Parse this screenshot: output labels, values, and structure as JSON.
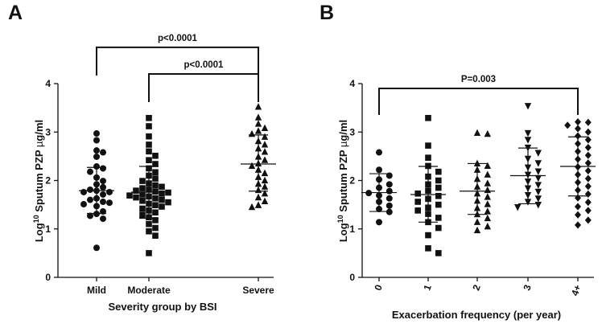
{
  "chart_data": [
    {
      "panel": "A",
      "type": "scatter",
      "xlabel": "Severity group by BSI",
      "ylabel_parts": [
        "Log",
        "10",
        " Sputum PZP ",
        "µ",
        "g/ml"
      ],
      "ylim": [
        0,
        4
      ],
      "yticks": [
        "0",
        "1",
        "2",
        "3",
        "4"
      ],
      "categories": [
        "Mild",
        "Moderate",
        "Severe"
      ],
      "markers": [
        "circle",
        "square",
        "triangle-up"
      ],
      "groups": [
        {
          "name": "Mild",
          "mean": 1.79,
          "sd_upper": 2.27,
          "sd_lower": 1.32,
          "values": [
            2.97,
            2.83,
            2.62,
            2.58,
            2.49,
            2.29,
            2.25,
            2.18,
            2.06,
            1.99,
            1.92,
            1.86,
            1.81,
            1.79,
            1.76,
            1.76,
            1.71,
            1.63,
            1.6,
            1.56,
            1.54,
            1.51,
            1.47,
            1.36,
            1.31,
            1.27,
            1.21,
            0.61
          ]
        },
        {
          "name": "Moderate",
          "mean": 1.76,
          "sd_upper": 2.29,
          "sd_lower": 1.22,
          "values": [
            3.29,
            3.12,
            2.91,
            2.74,
            2.6,
            2.51,
            2.42,
            2.34,
            2.25,
            2.17,
            2.1,
            2.04,
            1.99,
            1.94,
            1.9,
            1.87,
            1.84,
            1.81,
            1.79,
            1.77,
            1.75,
            1.73,
            1.71,
            1.69,
            1.67,
            1.65,
            1.63,
            1.6,
            1.58,
            1.55,
            1.52,
            1.49,
            1.46,
            1.42,
            1.38,
            1.34,
            1.29,
            1.24,
            1.18,
            1.1,
            1.02,
            0.95,
            0.86,
            0.5
          ]
        },
        {
          "name": "Severe",
          "mean": 2.34,
          "sd_upper": 2.94,
          "sd_lower": 1.78,
          "values": [
            3.52,
            3.3,
            3.17,
            3.08,
            3.02,
            2.96,
            2.9,
            2.81,
            2.74,
            2.66,
            2.59,
            2.49,
            2.42,
            2.35,
            2.3,
            2.22,
            2.15,
            2.07,
            2.0,
            1.93,
            1.87,
            1.8,
            1.73,
            1.65,
            1.57,
            1.49,
            1.45
          ]
        }
      ],
      "comparisons": [
        {
          "from": "Mild",
          "to": "Severe",
          "label": "p<0.0001",
          "level": 4.75
        },
        {
          "from": "Moderate",
          "to": "Severe",
          "label": "p<0.0001",
          "level": 4.2
        }
      ]
    },
    {
      "panel": "B",
      "type": "scatter",
      "xlabel": "Exacerbation frequency (per year)",
      "ylabel_parts": [
        "Log",
        "10",
        " Sputum PZP ",
        "µ",
        "g/ml"
      ],
      "ylim": [
        0,
        4
      ],
      "yticks": [
        "0",
        "1",
        "2",
        "3",
        "4"
      ],
      "categories": [
        "0",
        "1",
        "2",
        "3",
        "4+"
      ],
      "markers": [
        "circle",
        "square",
        "triangle-up",
        "triangle-down",
        "diamond"
      ],
      "groups": [
        {
          "name": "0",
          "mean": 1.75,
          "sd_upper": 2.14,
          "sd_lower": 1.36,
          "values": [
            2.58,
            2.22,
            2.1,
            2.02,
            1.92,
            1.85,
            1.78,
            1.74,
            1.69,
            1.63,
            1.56,
            1.48,
            1.41,
            1.35,
            1.14
          ]
        },
        {
          "name": "1",
          "mean": 1.71,
          "sd_upper": 2.29,
          "sd_lower": 1.14,
          "values": [
            3.29,
            2.72,
            2.47,
            2.3,
            2.18,
            2.08,
            2.0,
            1.92,
            1.85,
            1.79,
            1.73,
            1.68,
            1.62,
            1.56,
            1.5,
            1.44,
            1.38,
            1.31,
            1.23,
            1.14,
            1.02,
            0.87,
            0.6,
            0.5
          ]
        },
        {
          "name": "2",
          "mean": 1.78,
          "sd_upper": 2.35,
          "sd_lower": 1.3,
          "values": [
            2.98,
            2.96,
            2.35,
            2.3,
            2.22,
            2.12,
            2.03,
            1.94,
            1.87,
            1.8,
            1.73,
            1.66,
            1.58,
            1.51,
            1.43,
            1.36,
            1.3,
            1.22,
            1.14,
            1.05,
            0.97
          ]
        },
        {
          "name": "3",
          "mean": 2.1,
          "sd_upper": 2.67,
          "sd_lower": 1.52,
          "values": [
            3.54,
            2.98,
            2.84,
            2.68,
            2.57,
            2.45,
            2.36,
            2.27,
            2.19,
            2.12,
            2.05,
            1.98,
            1.91,
            1.84,
            1.77,
            1.7,
            1.63,
            1.56,
            1.5,
            1.45
          ]
        },
        {
          "name": "4+",
          "mean": 2.29,
          "sd_upper": 2.9,
          "sd_lower": 1.68,
          "values": [
            3.21,
            3.2,
            3.14,
            3.07,
            3.0,
            2.92,
            2.84,
            2.76,
            2.68,
            2.6,
            2.52,
            2.44,
            2.36,
            2.28,
            2.2,
            2.12,
            2.04,
            1.96,
            1.88,
            1.8,
            1.72,
            1.64,
            1.55,
            1.46,
            1.38,
            1.29,
            1.18,
            1.08
          ]
        }
      ],
      "comparisons": [
        {
          "from": "0",
          "to": "4+",
          "label": "P=0.003",
          "level": 3.9
        }
      ]
    }
  ]
}
